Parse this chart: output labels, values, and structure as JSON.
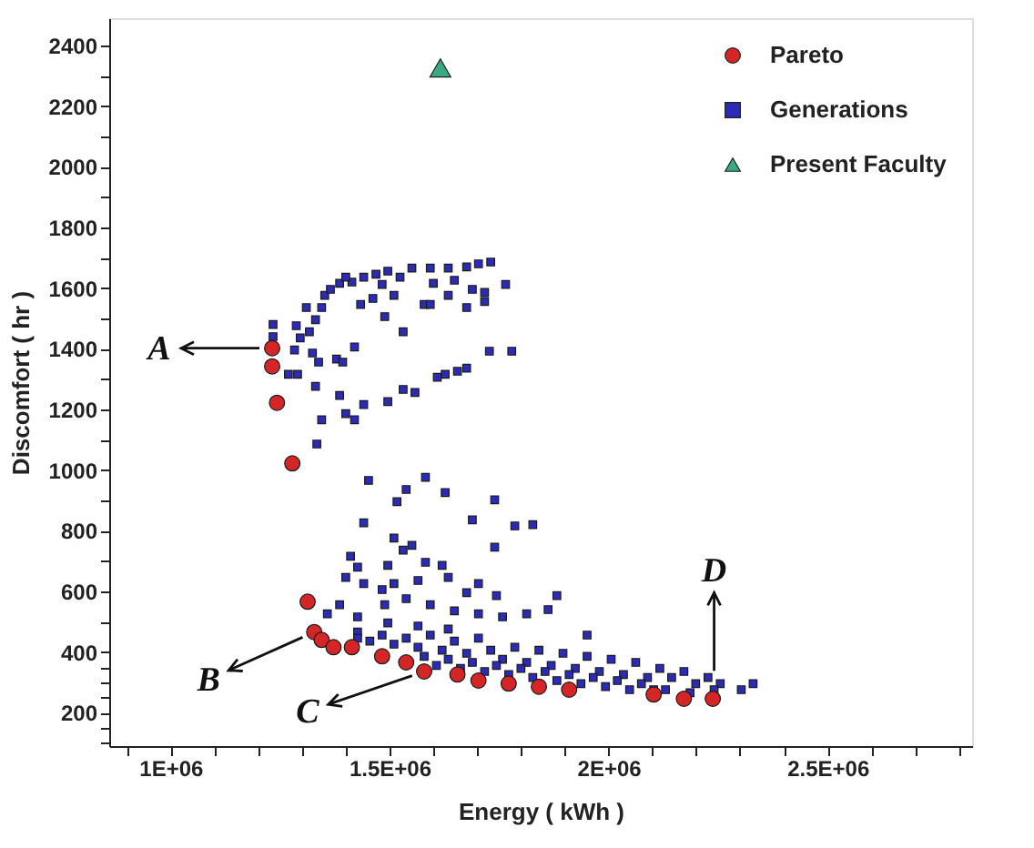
{
  "chart_data": {
    "type": "scatter",
    "xlabel": "Energy ( kWh )",
    "ylabel": "Discomfort ( hr )",
    "xlim": [
      860000,
      2830000
    ],
    "ylim": [
      90,
      2490
    ],
    "xticks": [
      {
        "value": 900000,
        "label": null
      },
      {
        "value": 1000000,
        "label": "1E+06"
      },
      {
        "value": 1100000,
        "label": null
      },
      {
        "value": 1200000,
        "label": null
      },
      {
        "value": 1300000,
        "label": null
      },
      {
        "value": 1400000,
        "label": null
      },
      {
        "value": 1500000,
        "label": "1.5E+06"
      },
      {
        "value": 1600000,
        "label": null
      },
      {
        "value": 1700000,
        "label": null
      },
      {
        "value": 1800000,
        "label": null
      },
      {
        "value": 1900000,
        "label": null
      },
      {
        "value": 2000000,
        "label": "2E+06"
      },
      {
        "value": 2100000,
        "label": null
      },
      {
        "value": 2200000,
        "label": null
      },
      {
        "value": 2300000,
        "label": null
      },
      {
        "value": 2400000,
        "label": null
      },
      {
        "value": 2500000,
        "label": "2.5E+06"
      },
      {
        "value": 2600000,
        "label": null
      },
      {
        "value": 2700000,
        "label": null
      },
      {
        "value": 2800000,
        "label": null
      }
    ],
    "yticks": [
      {
        "value": 100,
        "label": null
      },
      {
        "value": 150,
        "label": null
      },
      200,
      {
        "value": 250,
        "label": null
      },
      {
        "value": 300,
        "label": null
      },
      {
        "value": 350,
        "label": null
      },
      400,
      {
        "value": 500,
        "label": null
      },
      600,
      {
        "value": 700,
        "label": null
      },
      800,
      {
        "value": 900,
        "label": null
      },
      1000,
      {
        "value": 1100,
        "label": null
      },
      1200,
      {
        "value": 1300,
        "label": null
      },
      1400,
      {
        "value": 1500,
        "label": null
      },
      1600,
      {
        "value": 1700,
        "label": null
      },
      1800,
      {
        "value": 1900,
        "label": null
      },
      2000,
      {
        "value": 2100,
        "label": null
      },
      2200,
      {
        "value": 2300,
        "label": null
      },
      2400
    ],
    "grid": false,
    "legend": "top right",
    "series": [
      {
        "name": "Pareto",
        "marker": "circle",
        "color": "#d42626",
        "x": [
          1232000,
          1232000,
          1243000,
          1278000,
          1313000,
          1328000,
          1345000,
          1372000,
          1414000,
          1483000,
          1538000,
          1579000,
          1655000,
          1703000,
          1772000,
          1841000,
          1910000,
          2103000,
          2172000,
          2238000
        ],
        "values": [
          1402,
          1342,
          1222,
          1022,
          566,
          466,
          440,
          416,
          416,
          386,
          366,
          336,
          326,
          306,
          296,
          286,
          276,
          260,
          246,
          246
        ]
      },
      {
        "name": "Generations",
        "marker": "square",
        "color": "#2b2bb5",
        "x": [
          1234000,
          1234000,
          1287000,
          1296000,
          1283000,
          1317000,
          1331000,
          1345000,
          1310000,
          1324000,
          1290000,
          1269000,
          1338000,
          1331000,
          1345000,
          1334000,
          1379000,
          1393000,
          1420000,
          1386000,
          1400000,
          1420000,
          1441000,
          1496000,
          1531000,
          1558000,
          1609000,
          1627000,
          1655000,
          1676000,
          1728000,
          1779000,
          1352000,
          1365000,
          1386000,
          1414000,
          1400000,
          1441000,
          1469000,
          1496000,
          1524000,
          1551000,
          1593000,
          1634000,
          1676000,
          1703000,
          1731000,
          1765000,
          1600000,
          1648000,
          1689000,
          1717000,
          1483000,
          1510000,
          1579000,
          1593000,
          1634000,
          1676000,
          1717000,
          1489000,
          1531000,
          1434000,
          1462000,
          1452000,
          1517000,
          1538000,
          1582000,
          1627000,
          1689000,
          1740000,
          1740000,
          1786000,
          1827000,
          1441000,
          1510000,
          1551000,
          1531000,
          1411000,
          1427000,
          1496000,
          1582000,
          1620000,
          1400000,
          1441000,
          1483000,
          1510000,
          1565000,
          1634000,
          1676000,
          1703000,
          1744000,
          1882000,
          1358000,
          1386000,
          1427000,
          1489000,
          1538000,
          1593000,
          1648000,
          1703000,
          1758000,
          1813000,
          1862000,
          1427000,
          1496000,
          1565000,
          1634000,
          1951000,
          1427000,
          1455000,
          1483000,
          1510000,
          1538000,
          1565000,
          1593000,
          1620000,
          1648000,
          1676000,
          1703000,
          1731000,
          1758000,
          1786000,
          1813000,
          1841000,
          1869000,
          1896000,
          1924000,
          1951000,
          1979000,
          2006000,
          2034000,
          2062000,
          2089000,
          2117000,
          2144000,
          2172000,
          2199000,
          2227000,
          2255000,
          2303000,
          2330000,
          1579000,
          1607000,
          1634000,
          1662000,
          1689000,
          1717000,
          1744000,
          1772000,
          1800000,
          1827000,
          1855000,
          1882000,
          1910000,
          1937000,
          1965000,
          1993000,
          2020000,
          2048000,
          2075000,
          2103000,
          2130000,
          2186000,
          2241000
        ],
        "values": [
          1480,
          1440,
          1476,
          1436,
          1396,
          1456,
          1496,
          1536,
          1536,
          1386,
          1316,
          1316,
          1356,
          1276,
          1166,
          1086,
          1366,
          1356,
          1406,
          1246,
          1186,
          1166,
          1216,
          1226,
          1266,
          1256,
          1306,
          1316,
          1326,
          1336,
          1392,
          1392,
          1576,
          1596,
          1616,
          1620,
          1636,
          1636,
          1646,
          1656,
          1636,
          1666,
          1666,
          1666,
          1670,
          1680,
          1686,
          1612,
          1616,
          1626,
          1596,
          1586,
          1612,
          1576,
          1546,
          1546,
          1576,
          1536,
          1556,
          1506,
          1456,
          1546,
          1566,
          966,
          896,
          936,
          976,
          926,
          836,
          902,
          746,
          816,
          820,
          826,
          776,
          752,
          736,
          716,
          680,
          686,
          696,
          686,
          646,
          626,
          606,
          626,
          636,
          646,
          596,
          626,
          586,
          586,
          526,
          556,
          516,
          556,
          576,
          556,
          536,
          526,
          516,
          526,
          540,
          466,
          496,
          486,
          476,
          456,
          446,
          436,
          456,
          426,
          446,
          416,
          456,
          406,
          436,
          396,
          446,
          406,
          376,
          416,
          366,
          406,
          356,
          396,
          346,
          386,
          336,
          376,
          326,
          366,
          316,
          346,
          316,
          336,
          296,
          316,
          296,
          276,
          296,
          386,
          356,
          376,
          346,
          366,
          336,
          356,
          326,
          346,
          316,
          336,
          306,
          326,
          296,
          316,
          286,
          306,
          276,
          296,
          276,
          276,
          266,
          276
        ]
      },
      {
        "name": "Present Faculty",
        "marker": "triangle",
        "color": "#3aa882",
        "x": [
          1616000
        ],
        "values": [
          2326
        ]
      }
    ],
    "annotations": [
      {
        "text": "A",
        "x": 1232000,
        "y": 1402
      },
      {
        "text": "B",
        "x": 1328000,
        "y": 466
      },
      {
        "text": "C",
        "x": 1579000,
        "y": 336
      },
      {
        "text": "D",
        "x": 2241000,
        "y": 296
      }
    ]
  }
}
